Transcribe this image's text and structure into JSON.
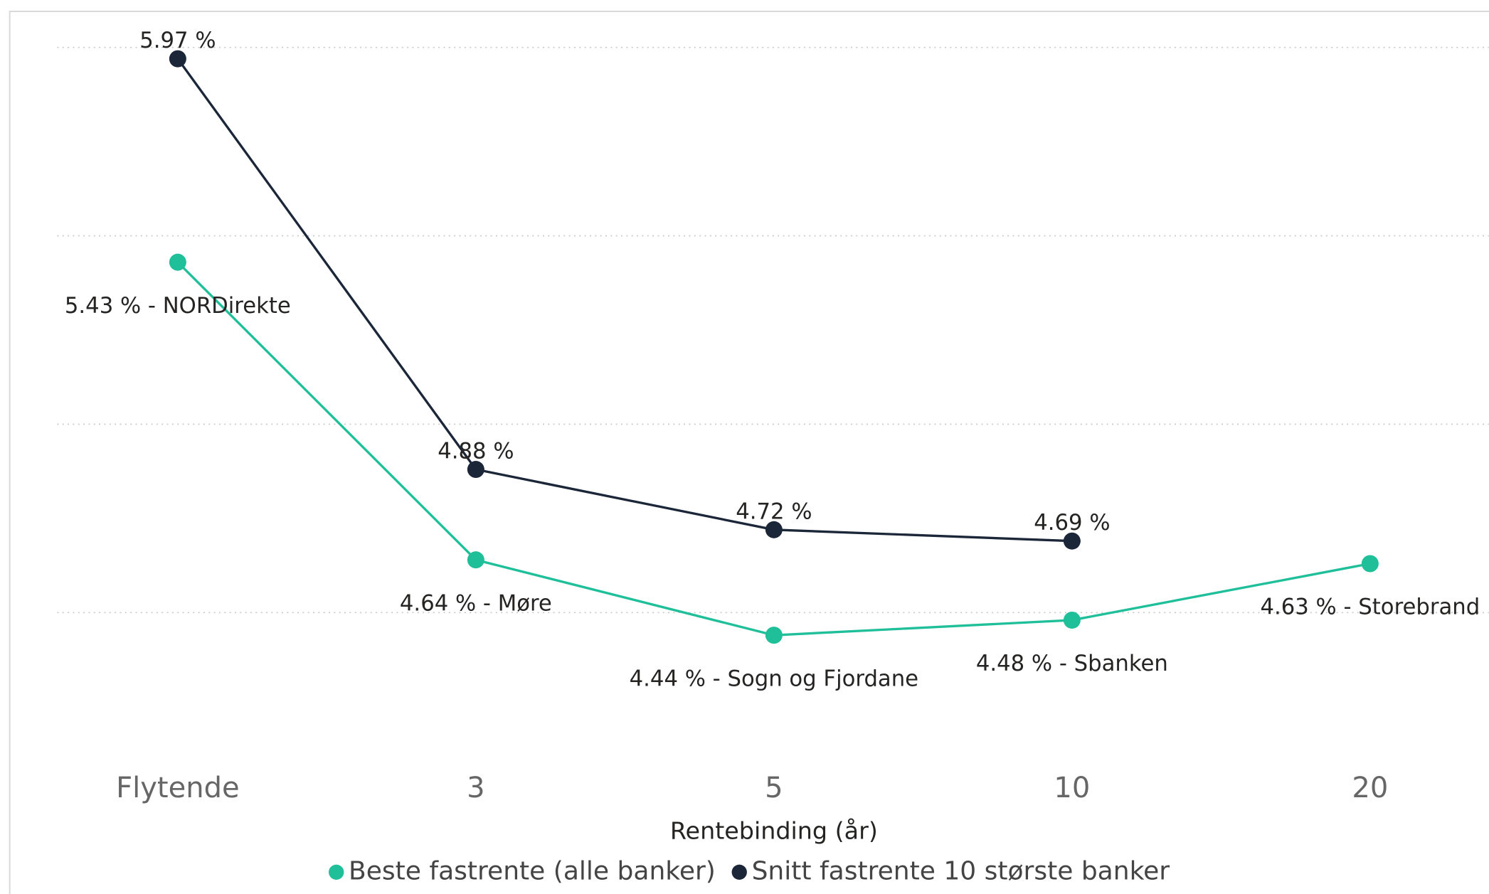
{
  "chart_data": {
    "type": "line",
    "x_label": "Rentebinding (år)",
    "categories": [
      "Flytende",
      "3",
      "5",
      "10",
      "20"
    ],
    "series": [
      {
        "name": "Beste fastrente (alle banker)",
        "color": "#1fbf9a",
        "values": [
          5.43,
          4.64,
          4.44,
          4.48,
          4.63
        ],
        "value_labels": [
          "5.43 % - NORDirekte",
          "4.64 % - Møre",
          "4.44 % - Sogn og Fjordane",
          "4.48 % - Sbanken",
          "4.63 % - Storebrand"
        ]
      },
      {
        "name": "Snitt fastrente 10 største banker",
        "color": "#1b2638",
        "values": [
          5.97,
          4.88,
          4.72,
          4.69,
          null
        ],
        "value_labels": [
          "5.97 %",
          "4.88 %",
          "4.72 %",
          "4.69 %",
          null
        ]
      }
    ],
    "ylim": [
      4.2,
      6.0
    ],
    "yticks": [
      4.5,
      5.0,
      5.5,
      6.0
    ],
    "show_ytick_labels": false,
    "grid": true,
    "legend": "bottom"
  }
}
